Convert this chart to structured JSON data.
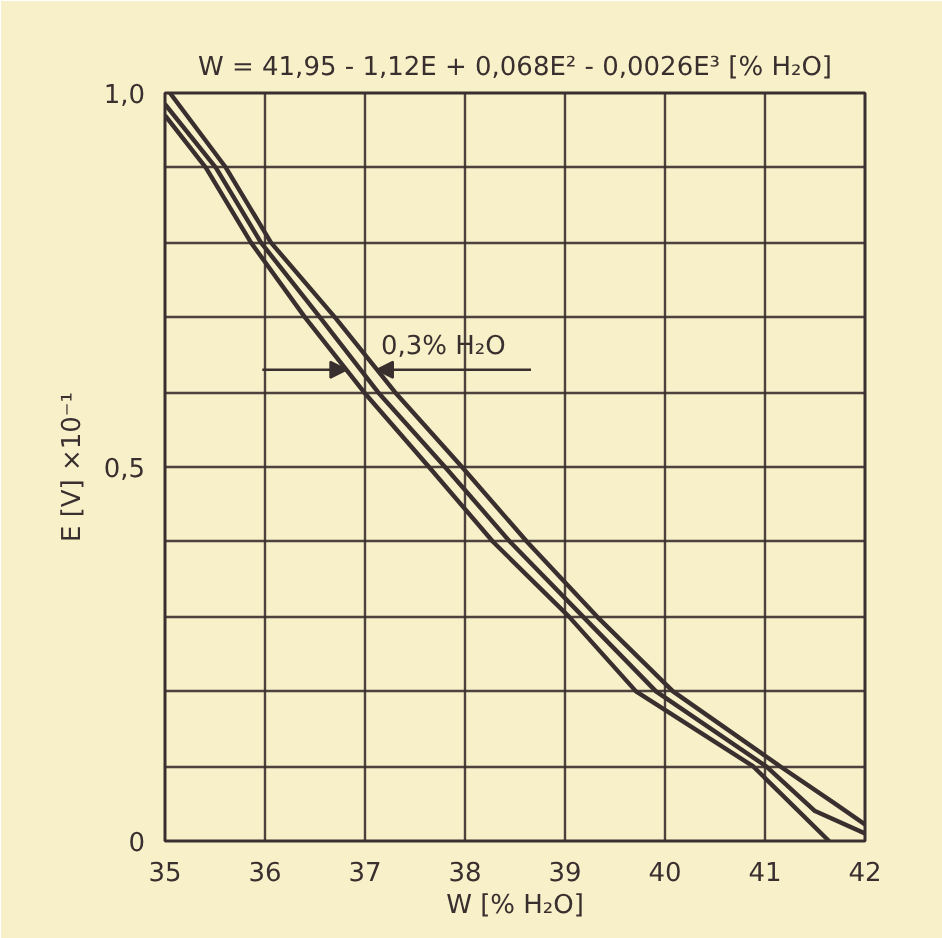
{
  "chart_data": {
    "type": "line",
    "title": "W = 41,95 - 1,12E + 0,068E² - 0,0026E³ [% H₂O]",
    "xlabel": "W [% H₂O]",
    "ylabel": "E [V] ×10⁻¹",
    "xlim": [
      35,
      42
    ],
    "ylim": [
      0,
      1.0
    ],
    "xticks": [
      35,
      36,
      37,
      38,
      39,
      40,
      41,
      42
    ],
    "yticks": [
      {
        "value": 0,
        "label": "0"
      },
      {
        "value": 0.1,
        "label": null
      },
      {
        "value": 0.2,
        "label": null
      },
      {
        "value": 0.3,
        "label": null
      },
      {
        "value": 0.4,
        "label": null
      },
      {
        "value": 0.5,
        "label": "0,5"
      },
      {
        "value": 0.6,
        "label": null
      },
      {
        "value": 0.7,
        "label": null
      },
      {
        "value": 0.8,
        "label": null
      },
      {
        "value": 0.9,
        "label": null
      },
      {
        "value": 1.0,
        "label": "1,0"
      }
    ],
    "grid": true,
    "marker": "none",
    "line_style": "solid",
    "series": [
      {
        "color": "#3a2f2f",
        "x": [
          35.0,
          35.41,
          35.86,
          36.4,
          36.99,
          37.64,
          38.28,
          39.04,
          39.71,
          40.88,
          41.64
        ],
        "values": [
          0.97,
          0.9,
          0.8,
          0.7,
          0.6,
          0.5,
          0.4,
          0.3,
          0.2,
          0.1,
          0
        ]
      },
      {
        "color": "#3a2f2f",
        "x": [
          35.0,
          35.51,
          35.96,
          36.55,
          37.13,
          37.8,
          38.45,
          39.18,
          39.91,
          41.01,
          41.5,
          42
        ],
        "values": [
          0.985,
          0.9,
          0.8,
          0.7,
          0.6,
          0.5,
          0.4,
          0.3,
          0.2,
          0.1,
          0.04,
          0.01
        ]
      },
      {
        "color": "#3a2f2f",
        "x": [
          35.05,
          35.61,
          36.06,
          36.7,
          37.3,
          37.97,
          38.62,
          39.32,
          40.08,
          41.15,
          41.7,
          42
        ],
        "values": [
          1.0,
          0.9,
          0.8,
          0.7,
          0.6,
          0.5,
          0.4,
          0.3,
          0.2,
          0.1,
          0.05,
          0.022
        ]
      }
    ],
    "annotations": [
      "0,3% H₂O"
    ]
  }
}
